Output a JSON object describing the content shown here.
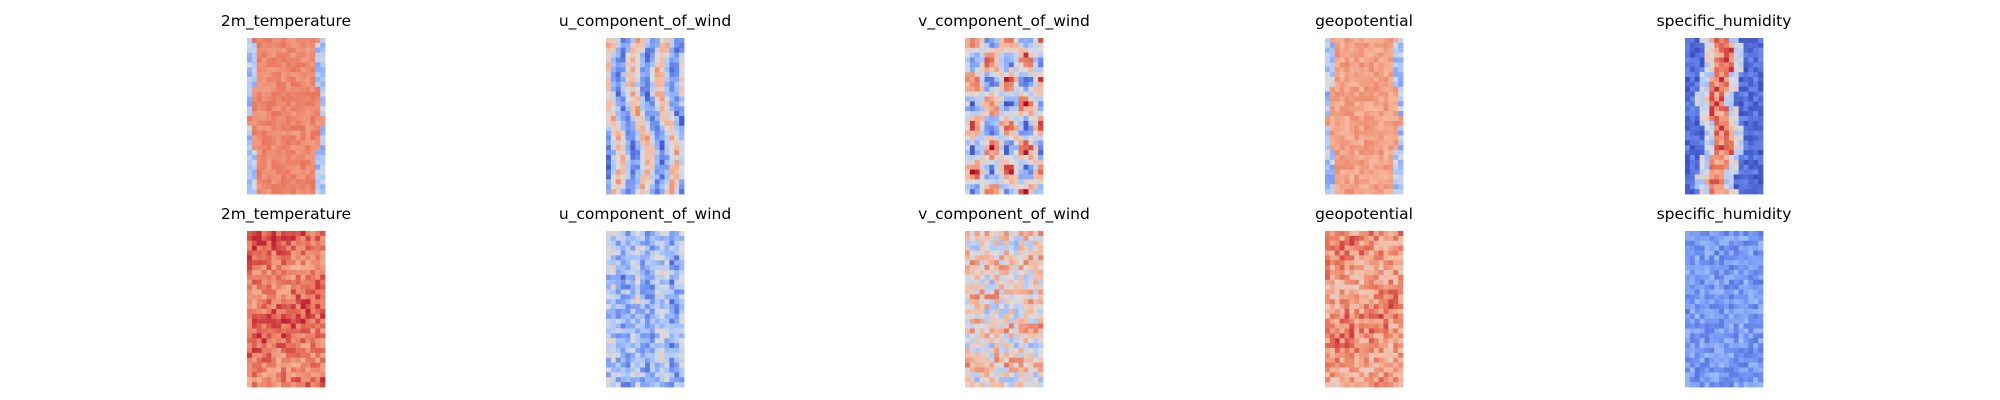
{
  "figure": {
    "colormap": "coolwarm",
    "colormap_stops": [
      "#3b4cc0",
      "#6f92f3",
      "#aac7fd",
      "#dddcdc",
      "#f7b89c",
      "#e7745b",
      "#b40426"
    ],
    "rows": 2,
    "cols": 5
  },
  "chart_data": {
    "type": "heatmap",
    "layout": "grid of 2 rows x 5 columns of field maps, axes hidden",
    "colormap": "coolwarm",
    "rows": [
      {
        "panels": [
          {
            "title": "2m_temperature",
            "pattern": "warm-band",
            "mean_level": 0.78,
            "variability": 0.25
          },
          {
            "title": "u_component_of_wind",
            "pattern": "stripes",
            "mean_level": 0.4,
            "variability": 0.45
          },
          {
            "title": "v_component_of_wind",
            "pattern": "eddies",
            "mean_level": 0.5,
            "variability": 0.55
          },
          {
            "title": "geopotential",
            "pattern": "warm-band",
            "mean_level": 0.72,
            "variability": 0.3
          },
          {
            "title": "specific_humidity",
            "pattern": "cold-center-warm",
            "mean_level": 0.25,
            "variability": 0.45
          }
        ]
      },
      {
        "panels": [
          {
            "title": "2m_temperature",
            "pattern": "warm-noisy",
            "mean_level": 0.82,
            "variability": 0.2
          },
          {
            "title": "u_component_of_wind",
            "pattern": "noisy-cool",
            "mean_level": 0.32,
            "variability": 0.35
          },
          {
            "title": "v_component_of_wind",
            "pattern": "noisy-warm",
            "mean_level": 0.55,
            "variability": 0.45
          },
          {
            "title": "geopotential",
            "pattern": "warm-noisy",
            "mean_level": 0.74,
            "variability": 0.28
          },
          {
            "title": "specific_humidity",
            "pattern": "noisy-cold",
            "mean_level": 0.2,
            "variability": 0.2
          }
        ]
      }
    ]
  }
}
